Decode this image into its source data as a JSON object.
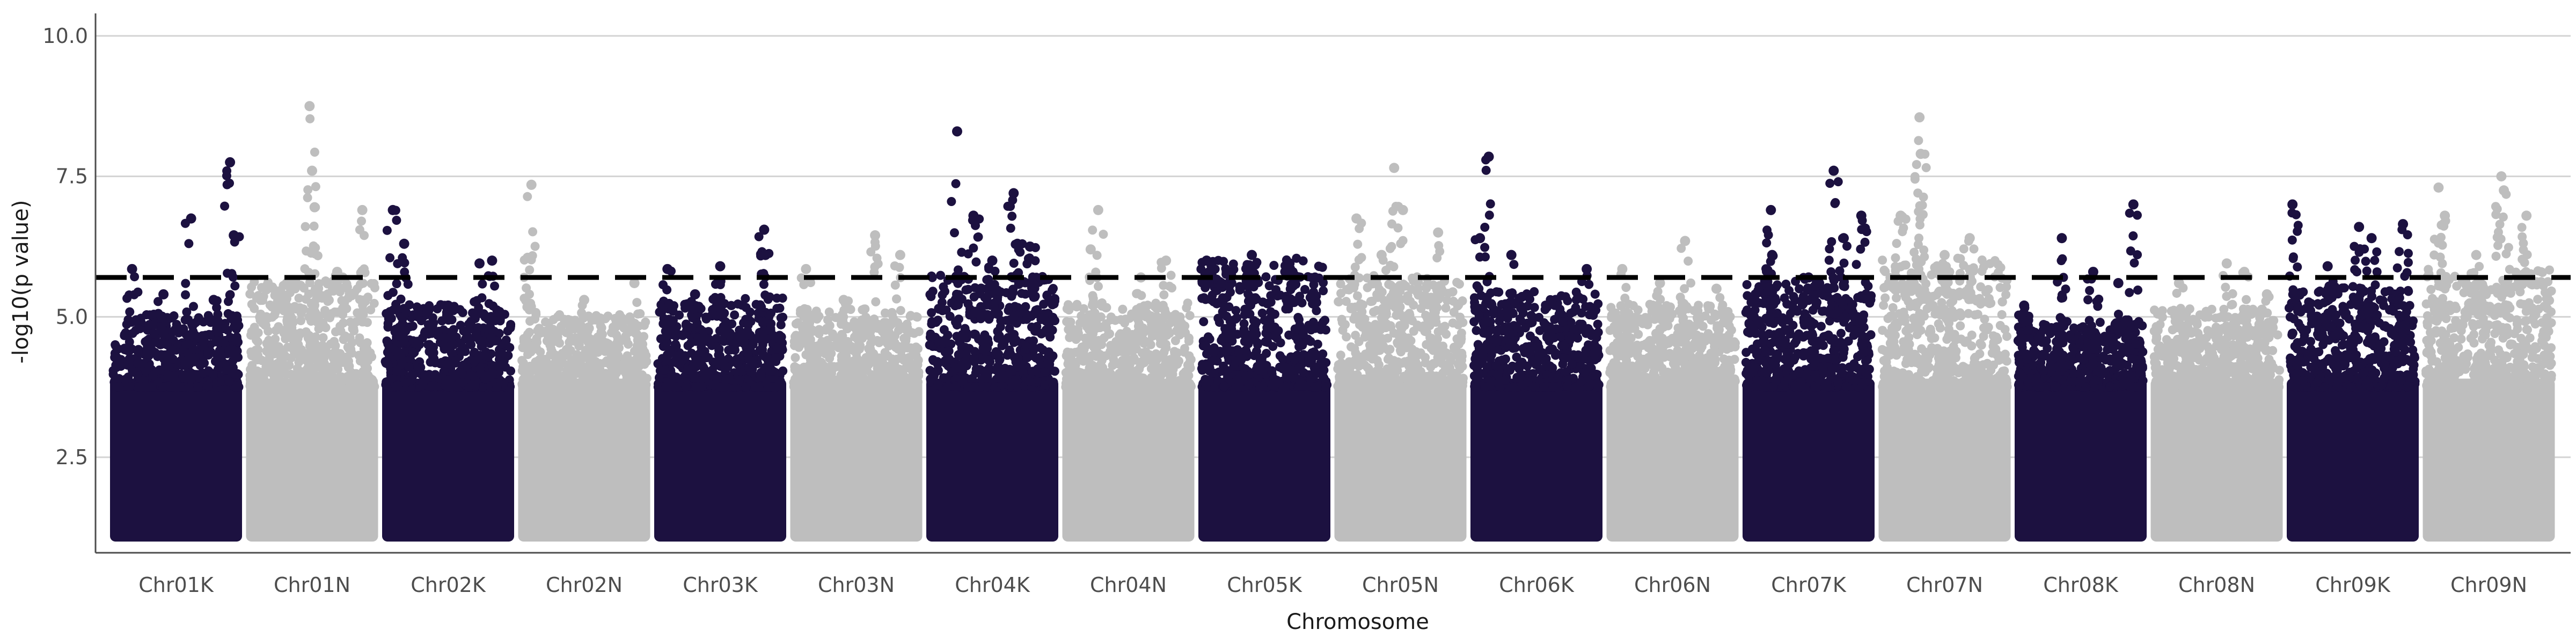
{
  "chart_data": {
    "type": "scatter",
    "subtype": "manhattan",
    "title": "",
    "xlabel": "Chromosome",
    "ylabel": "-log10(p value)",
    "ylim": [
      0.8,
      10.4
    ],
    "yticks": [
      2.5,
      5.0,
      7.5,
      10.0
    ],
    "ytick_labels": [
      "2.5",
      "5.0",
      "7.5",
      "10.0"
    ],
    "grid": "horizontal major",
    "legend": "none",
    "significance_threshold": 5.7,
    "colors": {
      "dark": "#1c1140",
      "light": "#bebebe",
      "threshold": "#000000",
      "grid": "#d3d3d3"
    },
    "chromosomes": [
      {
        "name": "Chr01K",
        "color": "dark",
        "base_top": 4.6,
        "peaks": [
          [
            0.15,
            5.85
          ],
          [
            0.62,
            6.75
          ],
          [
            0.93,
            7.75
          ],
          [
            0.96,
            6.45
          ],
          [
            0.4,
            5.4
          ],
          [
            0.8,
            5.3
          ]
        ]
      },
      {
        "name": "Chr01N",
        "color": "light",
        "base_top": 5.2,
        "peaks": [
          [
            0.48,
            8.75
          ],
          [
            0.5,
            7.6
          ],
          [
            0.52,
            6.95
          ],
          [
            0.3,
            5.6
          ],
          [
            0.7,
            5.8
          ],
          [
            0.9,
            6.9
          ]
        ]
      },
      {
        "name": "Chr02K",
        "color": "dark",
        "base_top": 4.8,
        "peaks": [
          [
            0.06,
            6.9
          ],
          [
            0.15,
            6.3
          ],
          [
            0.75,
            5.95
          ],
          [
            0.85,
            6.0
          ],
          [
            0.5,
            5.2
          ]
        ]
      },
      {
        "name": "Chr02N",
        "color": "light",
        "base_top": 4.6,
        "peaks": [
          [
            0.08,
            7.35
          ],
          [
            0.05,
            6.05
          ],
          [
            0.5,
            5.3
          ],
          [
            0.9,
            5.6
          ]
        ]
      },
      {
        "name": "Chr03K",
        "color": "dark",
        "base_top": 4.9,
        "peaks": [
          [
            0.08,
            5.85
          ],
          [
            0.5,
            5.9
          ],
          [
            0.85,
            6.55
          ],
          [
            0.86,
            6.1
          ],
          [
            0.3,
            5.4
          ]
        ]
      },
      {
        "name": "Chr03N",
        "color": "light",
        "base_top": 4.7,
        "peaks": [
          [
            0.1,
            5.85
          ],
          [
            0.65,
            6.45
          ],
          [
            0.85,
            6.1
          ],
          [
            0.4,
            5.3
          ]
        ]
      },
      {
        "name": "Chr04K",
        "color": "dark",
        "base_top": 5.3,
        "peaks": [
          [
            0.22,
            8.3
          ],
          [
            0.67,
            7.2
          ],
          [
            0.35,
            6.8
          ],
          [
            0.7,
            6.3
          ],
          [
            0.8,
            6.25
          ],
          [
            0.5,
            6.0
          ]
        ]
      },
      {
        "name": "Chr04N",
        "color": "light",
        "base_top": 4.8,
        "peaks": [
          [
            0.26,
            6.9
          ],
          [
            0.2,
            6.2
          ],
          [
            0.6,
            5.7
          ],
          [
            0.8,
            6.0
          ]
        ]
      },
      {
        "name": "Chr05K",
        "color": "dark",
        "base_top": 5.6,
        "peaks": [
          [
            0.04,
            6.0
          ],
          [
            0.4,
            6.1
          ],
          [
            0.7,
            5.95
          ],
          [
            0.2,
            5.8
          ]
        ]
      },
      {
        "name": "Chr05N",
        "color": "light",
        "base_top": 5.3,
        "peaks": [
          [
            0.45,
            7.65
          ],
          [
            0.52,
            6.9
          ],
          [
            0.15,
            6.75
          ],
          [
            0.8,
            6.5
          ],
          [
            0.35,
            6.1
          ]
        ]
      },
      {
        "name": "Chr06K",
        "color": "dark",
        "base_top": 5.0,
        "peaks": [
          [
            0.12,
            7.85
          ],
          [
            0.05,
            6.4
          ],
          [
            0.3,
            6.1
          ],
          [
            0.9,
            5.85
          ]
        ]
      },
      {
        "name": "Chr06N",
        "color": "light",
        "base_top": 4.8,
        "peaks": [
          [
            0.1,
            5.85
          ],
          [
            0.6,
            6.35
          ],
          [
            0.4,
            5.6
          ],
          [
            0.85,
            5.5
          ]
        ]
      },
      {
        "name": "Chr07K",
        "color": "dark",
        "base_top": 5.2,
        "peaks": [
          [
            0.2,
            6.9
          ],
          [
            0.7,
            7.6
          ],
          [
            0.78,
            6.4
          ],
          [
            0.92,
            6.8
          ],
          [
            0.21,
            6.1
          ],
          [
            0.5,
            5.7
          ]
        ]
      },
      {
        "name": "Chr07N",
        "color": "light",
        "base_top": 5.6,
        "peaks": [
          [
            0.3,
            8.55
          ],
          [
            0.31,
            7.9
          ],
          [
            0.15,
            6.8
          ],
          [
            0.7,
            6.4
          ],
          [
            0.5,
            6.1
          ]
        ]
      },
      {
        "name": "Chr08K",
        "color": "dark",
        "base_top": 4.5,
        "peaks": [
          [
            0.05,
            5.2
          ],
          [
            0.35,
            6.4
          ],
          [
            0.92,
            7.0
          ],
          [
            0.6,
            5.8
          ],
          [
            0.8,
            5.6
          ]
        ]
      },
      {
        "name": "Chr08N",
        "color": "light",
        "base_top": 4.7,
        "peaks": [
          [
            0.2,
            5.6
          ],
          [
            0.58,
            5.95
          ],
          [
            0.72,
            5.8
          ],
          [
            0.9,
            5.4
          ]
        ]
      },
      {
        "name": "Chr09K",
        "color": "dark",
        "base_top": 5.1,
        "peaks": [
          [
            0.02,
            7.0
          ],
          [
            0.55,
            6.6
          ],
          [
            0.65,
            6.4
          ],
          [
            0.9,
            6.65
          ],
          [
            0.3,
            5.9
          ]
        ]
      },
      {
        "name": "Chr09N",
        "color": "light",
        "base_top": 5.4,
        "peaks": [
          [
            0.1,
            7.3
          ],
          [
            0.15,
            6.8
          ],
          [
            0.6,
            7.5
          ],
          [
            0.62,
            7.25
          ],
          [
            0.8,
            6.8
          ],
          [
            0.4,
            6.1
          ]
        ]
      }
    ]
  }
}
